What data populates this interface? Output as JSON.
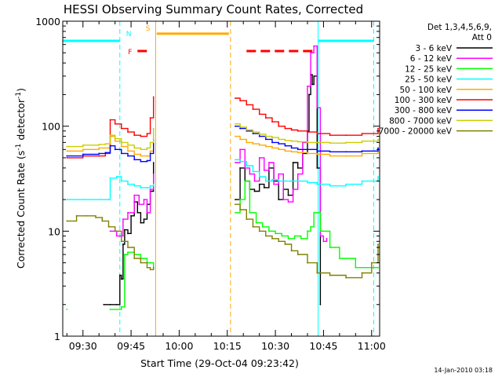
{
  "chart_data": {
    "type": "line",
    "title": "HESSI Observing Summary Count Rates, Corrected",
    "xlabel": "Start Time (29-Oct-04 09:23:42)",
    "ylabel_main": "Corrected Count Rate (s",
    "ylabel_sup1": "-1",
    "ylabel_mid": " detector",
    "ylabel_sup2": "-1",
    "ylabel_end": ")",
    "yscale": "log",
    "ylim": [
      1,
      1000
    ],
    "xlim": [
      "09:23:42",
      "11:02:30"
    ],
    "x_ticks": [
      "09:30",
      "09:45",
      "10:00",
      "10:15",
      "10:30",
      "10:45",
      "11:00"
    ],
    "y_ticks": [
      "1",
      "10",
      "100",
      "1000"
    ],
    "grid": false,
    "footer_date": "14-Jan-2010 03:18",
    "legend_header": [
      "Det 1,3,4,5,6,9,",
      "Att 0"
    ],
    "series": [
      {
        "name": "3 - 6 keV",
        "color": "#000000",
        "x": [
          "09:36:30",
          "09:38:30",
          "09:40:30",
          "09:41:30",
          "09:42:00",
          "09:42:30",
          "09:43:00",
          "09:44:00",
          "09:45:00",
          "09:46:00",
          "09:47:00",
          "09:48:00",
          "09:49:00",
          "09:50:00",
          "09:51:00",
          "09:52:00",
          "10:17:30",
          "10:19:00",
          "10:20:30",
          "10:22:00",
          "10:23:30",
          "10:25:00",
          "10:26:30",
          "10:28:00",
          "10:29:30",
          "10:31:00",
          "10:32:30",
          "10:34:00",
          "10:35:30",
          "10:37:00",
          "10:38:30",
          "10:40:00",
          "10:40:30",
          "10:41:00",
          "10:41:30",
          "10:42:00",
          "10:43:00",
          "10:44:00"
        ],
        "y": [
          2.0,
          2.0,
          2.0,
          3.8,
          3.5,
          7.5,
          10.3,
          9.5,
          14,
          19,
          15,
          12,
          13,
          18,
          24,
          45,
          20,
          40,
          30,
          25,
          24,
          28,
          26,
          40,
          30,
          20,
          25,
          22,
          45,
          40,
          55,
          90,
          200,
          310,
          250,
          300,
          40,
          2
        ]
      },
      {
        "name": "6 - 12 keV",
        "color": "#ff00ff",
        "x": [
          "09:38:30",
          "09:40:30",
          "09:42:30",
          "09:44:00",
          "09:46:00",
          "09:47:30",
          "09:49:00",
          "09:50:00",
          "09:51:00",
          "09:52:00",
          "10:17:30",
          "10:19:00",
          "10:20:30",
          "10:22:00",
          "10:23:30",
          "10:25:00",
          "10:26:30",
          "10:28:00",
          "10:29:30",
          "10:31:00",
          "10:32:30",
          "10:34:00",
          "10:35:30",
          "10:37:00",
          "10:38:30",
          "10:40:00",
          "10:41:00",
          "10:42:00",
          "10:43:00",
          "10:44:00",
          "10:45:00",
          "10:46:00"
        ],
        "y": [
          10,
          9,
          13,
          15,
          22,
          18,
          20,
          15,
          25,
          35,
          45,
          60,
          40,
          35,
          30,
          50,
          38,
          45,
          28,
          35,
          20,
          19,
          25,
          35,
          70,
          240,
          500,
          580,
          150,
          9,
          8,
          8.5
        ]
      },
      {
        "name": "12 - 25 keV",
        "color": "#00ff00",
        "x": [
          "09:25:00",
          "09:38:30",
          "09:42:00",
          "09:43:00",
          "09:44:00",
          "09:46:00",
          "09:48:00",
          "09:50:00",
          "09:51:00",
          "09:52:00",
          "10:17:30",
          "10:19:00",
          "10:20:30",
          "10:22:00",
          "10:24:00",
          "10:26:00",
          "10:28:00",
          "10:30:00",
          "10:32:00",
          "10:34:00",
          "10:36:00",
          "10:38:00",
          "10:40:00",
          "10:41:00",
          "10:42:00",
          "10:44:00",
          "10:47:00",
          "10:50:00",
          "10:55:00",
          "11:00:00",
          "11:02:00"
        ],
        "y": [
          1.8,
          1.8,
          1.9,
          6.0,
          6.3,
          6.0,
          5.5,
          5.0,
          5.0,
          4.5,
          15,
          20,
          30,
          15,
          12,
          11,
          10,
          9.5,
          9,
          8.5,
          9,
          8.5,
          10,
          11,
          15,
          10,
          7,
          5.5,
          4.5,
          4.5,
          4.5
        ]
      },
      {
        "name": "25 - 50 keV",
        "color": "#00ffff",
        "x": [
          "09:25:00",
          "09:30:00",
          "09:35:00",
          "09:38:00",
          "09:38:30",
          "09:40:30",
          "09:42:00",
          "09:44:00",
          "09:46:00",
          "09:48:00",
          "09:50:00",
          "09:51:00",
          "09:52:00",
          "10:17:30",
          "10:19:00",
          "10:21:00",
          "10:23:00",
          "10:25:00",
          "10:27:00",
          "10:29:00",
          "10:31:00",
          "10:33:00",
          "10:35:00",
          "10:37:00",
          "10:40:00",
          "10:43:00",
          "10:47:00",
          "10:52:00",
          "10:57:00",
          "11:02:00"
        ],
        "y": [
          20,
          20,
          20,
          20,
          32,
          33,
          30,
          28,
          27,
          26,
          26,
          27,
          28,
          48,
          46,
          42,
          37,
          33,
          30,
          31,
          30,
          30,
          30,
          30,
          29,
          28,
          27,
          28,
          30,
          33
        ]
      },
      {
        "name": "50 - 100 keV",
        "color": "#ffaa00",
        "x": [
          "09:25:00",
          "09:30:00",
          "09:35:00",
          "09:38:00",
          "09:38:30",
          "09:40:00",
          "09:42:00",
          "09:44:00",
          "09:46:00",
          "09:48:00",
          "09:50:00",
          "09:51:00",
          "09:52:00",
          "10:17:30",
          "10:19:00",
          "10:21:00",
          "10:23:00",
          "10:25:00",
          "10:27:00",
          "10:29:00",
          "10:31:00",
          "10:33:00",
          "10:35:00",
          "10:37:00",
          "10:40:00",
          "10:43:00",
          "10:47:00",
          "10:52:00",
          "10:57:00",
          "11:02:00"
        ],
        "y": [
          58,
          60,
          62,
          62,
          80,
          72,
          64,
          58,
          54,
          52,
          52,
          58,
          68,
          80,
          75,
          70,
          68,
          66,
          64,
          62,
          60,
          58,
          57,
          56,
          55,
          54,
          52,
          52,
          55,
          58
        ]
      },
      {
        "name": "100 - 300 keV",
        "color": "#ff0000",
        "x": [
          "09:25:00",
          "09:30:00",
          "09:35:00",
          "09:37:00",
          "09:38:30",
          "09:40:00",
          "09:42:00",
          "09:44:00",
          "09:46:00",
          "09:48:00",
          "09:50:00",
          "09:51:00",
          "09:52:00",
          "10:17:30",
          "10:19:00",
          "10:21:00",
          "10:23:00",
          "10:25:00",
          "10:27:00",
          "10:29:00",
          "10:31:00",
          "10:33:00",
          "10:35:00",
          "10:37:00",
          "10:40:00",
          "10:43:00",
          "10:47:00",
          "10:52:00",
          "10:57:00",
          "11:02:00"
        ],
        "y": [
          50,
          52,
          52,
          55,
          115,
          105,
          95,
          88,
          82,
          80,
          85,
          120,
          190,
          185,
          175,
          160,
          145,
          130,
          120,
          110,
          100,
          95,
          92,
          90,
          88,
          85,
          82,
          82,
          85,
          95
        ]
      },
      {
        "name": "300 - 800 keV",
        "color": "#0000ff",
        "x": [
          "09:25:00",
          "09:30:00",
          "09:35:00",
          "09:37:00",
          "09:38:30",
          "09:40:00",
          "09:42:00",
          "09:44:00",
          "09:46:00",
          "09:48:00",
          "09:50:00",
          "09:51:00",
          "09:52:00",
          "10:17:30",
          "10:19:00",
          "10:21:00",
          "10:23:00",
          "10:25:00",
          "10:27:00",
          "10:29:00",
          "10:31:00",
          "10:33:00",
          "10:35:00",
          "10:37:00",
          "10:40:00",
          "10:43:00",
          "10:47:00",
          "10:52:00",
          "10:57:00",
          "11:02:00"
        ],
        "y": [
          52,
          54,
          55,
          56,
          65,
          60,
          55,
          52,
          48,
          46,
          47,
          55,
          75,
          100,
          95,
          90,
          85,
          80,
          75,
          70,
          68,
          65,
          62,
          60,
          60,
          58,
          57,
          57,
          58,
          62
        ]
      },
      {
        "name": "800 - 7000 keV",
        "color": "#cccc00",
        "x": [
          "09:25:00",
          "09:30:00",
          "09:35:00",
          "09:37:00",
          "09:38:30",
          "09:40:00",
          "09:42:00",
          "09:44:00",
          "09:46:00",
          "09:48:00",
          "09:50:00",
          "09:51:00",
          "09:52:00",
          "10:17:30",
          "10:19:00",
          "10:21:00",
          "10:23:00",
          "10:25:00",
          "10:27:00",
          "10:29:00",
          "10:31:00",
          "10:33:00",
          "10:35:00",
          "10:37:00",
          "10:40:00",
          "10:43:00",
          "10:47:00",
          "10:52:00",
          "10:57:00",
          "11:02:00"
        ],
        "y": [
          64,
          66,
          67,
          68,
          82,
          76,
          70,
          66,
          62,
          60,
          62,
          70,
          95,
          105,
          98,
          92,
          88,
          84,
          80,
          78,
          75,
          73,
          72,
          71,
          70,
          70,
          69,
          70,
          72,
          75
        ]
      },
      {
        "name": "7000 - 20000 keV",
        "color": "#808000",
        "x": [
          "09:25:00",
          "09:28:00",
          "09:31:00",
          "09:34:00",
          "09:36:00",
          "09:38:00",
          "09:40:00",
          "09:42:00",
          "09:44:00",
          "09:46:00",
          "09:48:00",
          "09:50:00",
          "09:51:00",
          "09:52:00",
          "10:17:30",
          "10:19:00",
          "10:21:00",
          "10:23:00",
          "10:25:00",
          "10:27:00",
          "10:29:00",
          "10:31:00",
          "10:33:00",
          "10:35:00",
          "10:37:00",
          "10:40:00",
          "10:43:00",
          "10:47:00",
          "10:52:00",
          "10:57:00",
          "11:00:00",
          "11:02:00"
        ],
        "y": [
          12.5,
          14,
          14,
          13.5,
          12.5,
          11,
          10,
          8,
          7,
          5.5,
          5,
          4.5,
          4.3,
          4.5,
          18,
          16,
          13,
          11,
          10,
          9,
          8.5,
          8,
          7.5,
          6.5,
          6,
          5,
          4,
          3.8,
          3.6,
          4,
          5,
          7.5
        ]
      }
    ],
    "annotations": {
      "vlines": [
        {
          "t": "09:41:30",
          "color": "#00ffff",
          "style": "dashed"
        },
        {
          "t": "09:52:40",
          "color": "#ffaa00",
          "style": "solid"
        },
        {
          "t": "10:16:00",
          "color": "#ffaa00",
          "style": "dashed"
        },
        {
          "t": "10:43:20",
          "color": "#00ffff",
          "style": "solid"
        },
        {
          "t": "11:00:40",
          "color": "#00ffff",
          "style": "dashed"
        }
      ],
      "bars": [
        {
          "from": "09:23:42",
          "to": "09:41:30",
          "level": 650,
          "color": "#00ffff",
          "style": "solid",
          "label": "N"
        },
        {
          "from": "09:47:00",
          "to": "09:50:00",
          "level": 520,
          "color": "#ff0000",
          "style": "dashed",
          "label": "F"
        },
        {
          "from": "09:53:00",
          "to": "10:15:30",
          "level": 760,
          "color": "#ffaa00",
          "style": "solid",
          "label": "S"
        },
        {
          "from": "10:21:00",
          "to": "10:43:00",
          "level": 520,
          "color": "#ff0000",
          "style": "dashed"
        },
        {
          "from": "10:43:20",
          "to": "11:00:40",
          "level": 650,
          "color": "#00ffff",
          "style": "solid"
        }
      ]
    }
  }
}
